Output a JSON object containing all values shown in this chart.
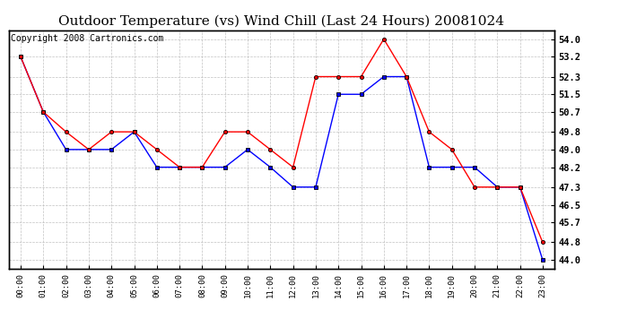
{
  "title": "Outdoor Temperature (vs) Wind Chill (Last 24 Hours) 20081024",
  "copyright": "Copyright 2008 Cartronics.com",
  "hours": [
    "00:00",
    "01:00",
    "02:00",
    "03:00",
    "04:00",
    "05:00",
    "06:00",
    "07:00",
    "08:00",
    "09:00",
    "10:00",
    "11:00",
    "12:00",
    "13:00",
    "14:00",
    "15:00",
    "16:00",
    "17:00",
    "18:00",
    "19:00",
    "20:00",
    "21:00",
    "22:00",
    "23:00"
  ],
  "temp": [
    53.2,
    50.7,
    49.8,
    49.0,
    49.8,
    49.8,
    49.0,
    48.2,
    48.2,
    49.8,
    49.8,
    49.0,
    48.2,
    52.3,
    52.3,
    52.3,
    54.0,
    52.3,
    49.8,
    49.0,
    47.3,
    47.3,
    47.3,
    44.8
  ],
  "wind_chill": [
    53.2,
    50.7,
    49.0,
    49.0,
    49.0,
    49.8,
    48.2,
    48.2,
    48.2,
    48.2,
    49.0,
    48.2,
    47.3,
    47.3,
    51.5,
    51.5,
    52.3,
    52.3,
    48.2,
    48.2,
    48.2,
    47.3,
    47.3,
    44.0
  ],
  "temp_color": "#ff0000",
  "wind_chill_color": "#0000ff",
  "ylim_min": 43.6,
  "ylim_max": 54.4,
  "yticks": [
    44.0,
    44.8,
    45.7,
    46.5,
    47.3,
    48.2,
    49.0,
    49.8,
    50.7,
    51.5,
    52.3,
    53.2,
    54.0
  ],
  "background_color": "#ffffff",
  "plot_bg_color": "#ffffff",
  "grid_color": "#bbbbbb",
  "title_fontsize": 11,
  "copyright_fontsize": 7
}
